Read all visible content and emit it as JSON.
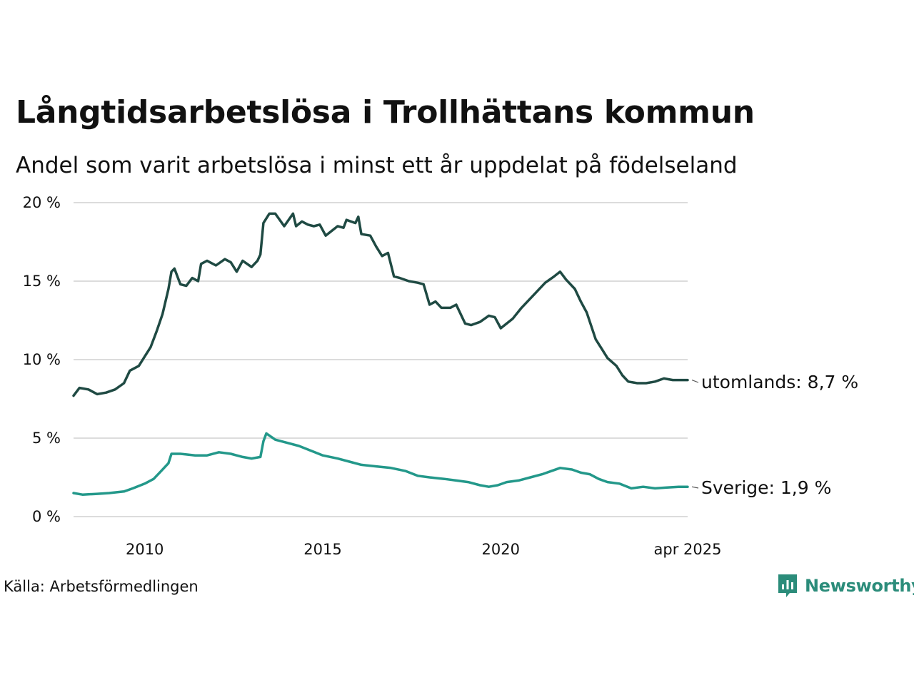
{
  "title": "Långtidsarbetslösa i Trollhättans kommun",
  "subtitle": "Andel som varit arbetslösa i minst ett år uppdelat på födelseland",
  "source": "Källa: Arbetsförmedlingen",
  "brand": {
    "name": "Newsworthy",
    "icon": "newsworthy-logo-icon",
    "color": "#2b8c7a"
  },
  "chart_data": {
    "type": "line",
    "x_unit": "date (year-month)",
    "xlim": [
      "2008-01",
      "2025-04"
    ],
    "ylim": [
      0,
      20
    ],
    "y_unit": "%",
    "y_ticks": [
      {
        "value": 0,
        "label": "0 %"
      },
      {
        "value": 5,
        "label": "5 %"
      },
      {
        "value": 10,
        "label": "10 %"
      },
      {
        "value": 15,
        "label": "15 %"
      },
      {
        "value": 20,
        "label": "20 %"
      }
    ],
    "x_ticks": [
      {
        "value": "2010-01",
        "label": "2010"
      },
      {
        "value": "2015-01",
        "label": "2015"
      },
      {
        "value": "2020-01",
        "label": "2020"
      },
      {
        "value": "2025-04",
        "label": "apr 2025"
      }
    ],
    "grid": "horizontal",
    "legend": "direct labels at line ends",
    "series": [
      {
        "name": "utomlands",
        "end_label": "utomlands: 8,7 %",
        "color": "#1f4a43",
        "points": [
          [
            "2008-01",
            7.7
          ],
          [
            "2008-03",
            8.2
          ],
          [
            "2008-06",
            8.1
          ],
          [
            "2008-09",
            7.8
          ],
          [
            "2008-12",
            7.9
          ],
          [
            "2009-03",
            8.1
          ],
          [
            "2009-06",
            8.5
          ],
          [
            "2009-08",
            9.3
          ],
          [
            "2009-11",
            9.6
          ],
          [
            "2010-01",
            10.2
          ],
          [
            "2010-03",
            10.8
          ],
          [
            "2010-05",
            11.8
          ],
          [
            "2010-07",
            12.9
          ],
          [
            "2010-09",
            14.5
          ],
          [
            "2010-10",
            15.6
          ],
          [
            "2010-11",
            15.8
          ],
          [
            "2011-01",
            14.8
          ],
          [
            "2011-03",
            14.7
          ],
          [
            "2011-05",
            15.2
          ],
          [
            "2011-07",
            15.0
          ],
          [
            "2011-08",
            16.1
          ],
          [
            "2011-10",
            16.3
          ],
          [
            "2012-01",
            16.0
          ],
          [
            "2012-04",
            16.4
          ],
          [
            "2012-06",
            16.2
          ],
          [
            "2012-08",
            15.6
          ],
          [
            "2012-10",
            16.3
          ],
          [
            "2013-01",
            15.9
          ],
          [
            "2013-03",
            16.3
          ],
          [
            "2013-04",
            16.7
          ],
          [
            "2013-05",
            18.7
          ],
          [
            "2013-07",
            19.3
          ],
          [
            "2013-09",
            19.3
          ],
          [
            "2013-12",
            18.5
          ],
          [
            "2014-03",
            19.3
          ],
          [
            "2014-04",
            18.5
          ],
          [
            "2014-06",
            18.8
          ],
          [
            "2014-08",
            18.6
          ],
          [
            "2014-10",
            18.5
          ],
          [
            "2014-12",
            18.6
          ],
          [
            "2015-02",
            17.9
          ],
          [
            "2015-06",
            18.5
          ],
          [
            "2015-08",
            18.4
          ],
          [
            "2015-09",
            18.9
          ],
          [
            "2015-12",
            18.7
          ],
          [
            "2016-01",
            19.1
          ],
          [
            "2016-02",
            18.0
          ],
          [
            "2016-05",
            17.9
          ],
          [
            "2016-07",
            17.2
          ],
          [
            "2016-09",
            16.6
          ],
          [
            "2016-11",
            16.8
          ],
          [
            "2017-01",
            15.3
          ],
          [
            "2017-03",
            15.2
          ],
          [
            "2017-06",
            15.0
          ],
          [
            "2017-09",
            14.9
          ],
          [
            "2017-11",
            14.8
          ],
          [
            "2018-01",
            13.5
          ],
          [
            "2018-03",
            13.7
          ],
          [
            "2018-05",
            13.3
          ],
          [
            "2018-08",
            13.3
          ],
          [
            "2018-10",
            13.5
          ],
          [
            "2019-01",
            12.3
          ],
          [
            "2019-03",
            12.2
          ],
          [
            "2019-06",
            12.4
          ],
          [
            "2019-09",
            12.8
          ],
          [
            "2019-11",
            12.7
          ],
          [
            "2020-01",
            12.0
          ],
          [
            "2020-05",
            12.6
          ],
          [
            "2020-08",
            13.3
          ],
          [
            "2020-10",
            13.7
          ],
          [
            "2021-01",
            14.3
          ],
          [
            "2021-04",
            14.9
          ],
          [
            "2021-07",
            15.3
          ],
          [
            "2021-09",
            15.6
          ],
          [
            "2021-11",
            15.1
          ],
          [
            "2022-02",
            14.5
          ],
          [
            "2022-04",
            13.7
          ],
          [
            "2022-06",
            13.0
          ],
          [
            "2022-09",
            11.3
          ],
          [
            "2022-11",
            10.7
          ],
          [
            "2023-01",
            10.1
          ],
          [
            "2023-04",
            9.6
          ],
          [
            "2023-06",
            9.0
          ],
          [
            "2023-08",
            8.6
          ],
          [
            "2023-11",
            8.5
          ],
          [
            "2024-02",
            8.5
          ],
          [
            "2024-05",
            8.6
          ],
          [
            "2024-08",
            8.8
          ],
          [
            "2024-11",
            8.7
          ],
          [
            "2025-04",
            8.7
          ]
        ]
      },
      {
        "name": "Sverige",
        "end_label": "Sverige: 1,9 %",
        "color": "#23988a",
        "points": [
          [
            "2008-01",
            1.5
          ],
          [
            "2008-04",
            1.4
          ],
          [
            "2008-09",
            1.45
          ],
          [
            "2009-01",
            1.5
          ],
          [
            "2009-06",
            1.6
          ],
          [
            "2009-09",
            1.8
          ],
          [
            "2010-01",
            2.1
          ],
          [
            "2010-04",
            2.4
          ],
          [
            "2010-06",
            2.8
          ],
          [
            "2010-09",
            3.4
          ],
          [
            "2010-10",
            4.0
          ],
          [
            "2011-01",
            4.0
          ],
          [
            "2011-06",
            3.9
          ],
          [
            "2011-10",
            3.9
          ],
          [
            "2012-02",
            4.1
          ],
          [
            "2012-06",
            4.0
          ],
          [
            "2012-10",
            3.8
          ],
          [
            "2013-01",
            3.7
          ],
          [
            "2013-04",
            3.8
          ],
          [
            "2013-05",
            4.8
          ],
          [
            "2013-06",
            5.3
          ],
          [
            "2013-09",
            4.9
          ],
          [
            "2014-01",
            4.7
          ],
          [
            "2014-05",
            4.5
          ],
          [
            "2014-09",
            4.2
          ],
          [
            "2015-01",
            3.9
          ],
          [
            "2015-06",
            3.7
          ],
          [
            "2015-10",
            3.5
          ],
          [
            "2016-02",
            3.3
          ],
          [
            "2016-07",
            3.2
          ],
          [
            "2016-12",
            3.1
          ],
          [
            "2017-05",
            2.9
          ],
          [
            "2017-09",
            2.6
          ],
          [
            "2018-01",
            2.5
          ],
          [
            "2018-06",
            2.4
          ],
          [
            "2018-10",
            2.3
          ],
          [
            "2019-02",
            2.2
          ],
          [
            "2019-06",
            2.0
          ],
          [
            "2019-09",
            1.9
          ],
          [
            "2019-12",
            2.0
          ],
          [
            "2020-03",
            2.2
          ],
          [
            "2020-07",
            2.3
          ],
          [
            "2020-11",
            2.5
          ],
          [
            "2021-03",
            2.7
          ],
          [
            "2021-06",
            2.9
          ],
          [
            "2021-09",
            3.1
          ],
          [
            "2022-01",
            3.0
          ],
          [
            "2022-04",
            2.8
          ],
          [
            "2022-07",
            2.7
          ],
          [
            "2022-10",
            2.4
          ],
          [
            "2023-01",
            2.2
          ],
          [
            "2023-05",
            2.1
          ],
          [
            "2023-09",
            1.8
          ],
          [
            "2024-01",
            1.9
          ],
          [
            "2024-05",
            1.8
          ],
          [
            "2024-09",
            1.85
          ],
          [
            "2025-01",
            1.9
          ],
          [
            "2025-04",
            1.9
          ]
        ]
      }
    ]
  }
}
